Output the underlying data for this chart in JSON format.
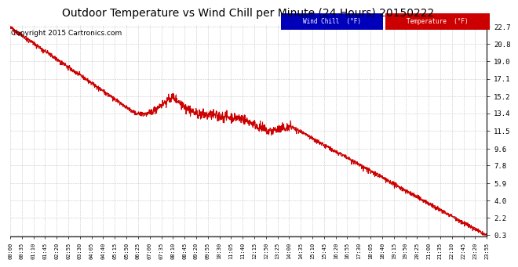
{
  "title": "Outdoor Temperature vs Wind Chill per Minute (24 Hours) 20150222",
  "copyright": "Copyright 2015 Cartronics.com",
  "yticks": [
    0.3,
    2.2,
    4.0,
    5.9,
    7.8,
    9.6,
    11.5,
    13.4,
    15.2,
    17.1,
    19.0,
    20.8,
    22.7
  ],
  "ymin": 0.3,
  "ymax": 22.7,
  "xtick_labels": [
    "00:00",
    "00:35",
    "01:10",
    "01:45",
    "02:20",
    "02:55",
    "03:30",
    "04:05",
    "04:40",
    "05:15",
    "05:50",
    "06:25",
    "07:00",
    "07:35",
    "08:10",
    "08:45",
    "09:20",
    "09:55",
    "10:30",
    "11:05",
    "11:40",
    "12:15",
    "12:50",
    "13:25",
    "14:00",
    "14:35",
    "15:10",
    "15:45",
    "16:20",
    "16:55",
    "17:30",
    "18:05",
    "18:40",
    "19:15",
    "19:50",
    "20:25",
    "21:00",
    "21:35",
    "22:10",
    "22:45",
    "23:20",
    "23:55"
  ],
  "temp_color": "#cc0000",
  "wind_chill_color": "#cc0000",
  "background_color": "#ffffff",
  "plot_bg_color": "#ffffff",
  "grid_color": "#bbbbbb",
  "legend_wind_chill_bg": "#0000bb",
  "legend_temp_bg": "#cc0000",
  "title_fontsize": 10,
  "copyright_fontsize": 6.5
}
